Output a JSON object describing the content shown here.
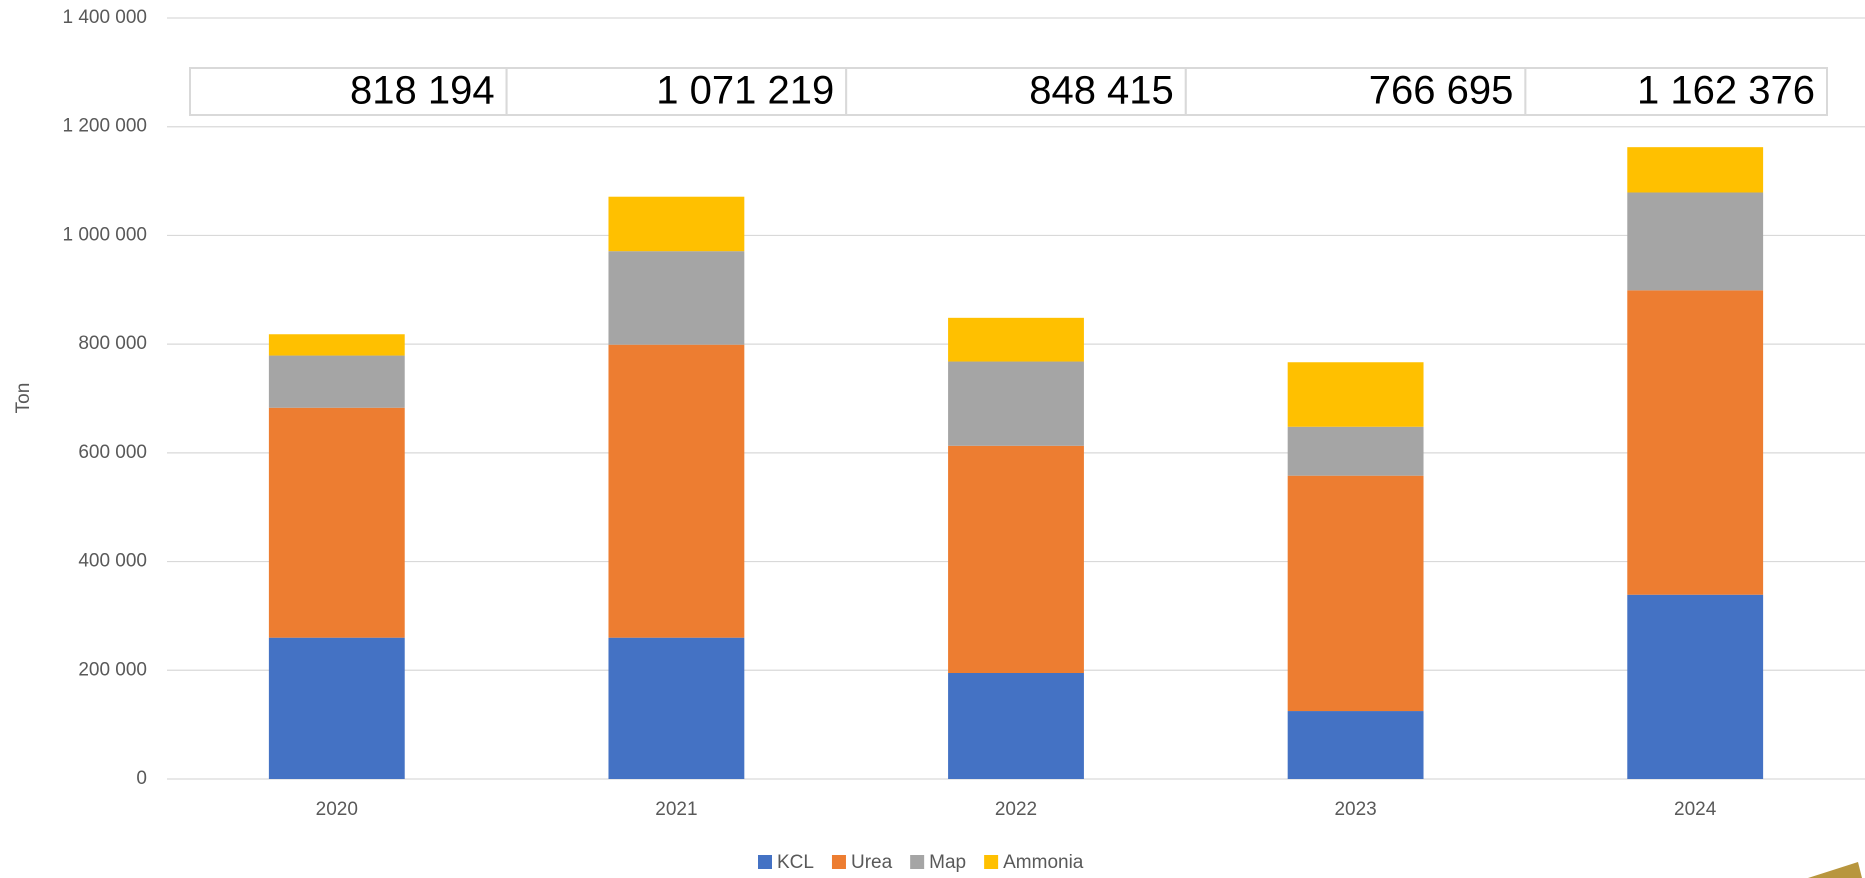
{
  "chart_data": {
    "type": "stacked_bar",
    "y_label": "Ton",
    "categories": [
      "2020",
      "2021",
      "2022",
      "2023",
      "2024"
    ],
    "series": [
      {
        "name": "KCL",
        "color": "#4472c4",
        "values": [
          260000,
          260000,
          195000,
          125000,
          339000
        ]
      },
      {
        "name": "Urea",
        "color": "#ed7d31",
        "values": [
          423000,
          539000,
          418000,
          433000,
          560000
        ]
      },
      {
        "name": "Map",
        "color": "#a5a5a5",
        "values": [
          96000,
          172000,
          155000,
          90000,
          180000
        ]
      },
      {
        "name": "Ammonia",
        "color": "#ffc000",
        "values": [
          39194,
          100219,
          80415,
          118695,
          83376
        ]
      }
    ],
    "totals": {
      "values": [
        818194,
        1071219,
        848415,
        766695,
        1162376
      ],
      "value_labels": [
        "818 194",
        "1 071 219",
        "848 415",
        "766 695",
        "1 162 376"
      ]
    },
    "ylim": [
      0,
      1400000
    ],
    "yticks": [
      0,
      {
        "value": 200000,
        "label": "200 000"
      },
      {
        "value": 400000,
        "label": "400 000"
      },
      {
        "value": 600000,
        "label": "600 000"
      },
      {
        "value": 800000,
        "label": "800 000"
      },
      {
        "value": 1000000,
        "label": "1 000 000"
      },
      {
        "value": 1200000,
        "label": "1 200 000"
      },
      {
        "value": 1400000,
        "label": "1 400 000"
      }
    ],
    "grid": true,
    "legend": "bottom"
  }
}
